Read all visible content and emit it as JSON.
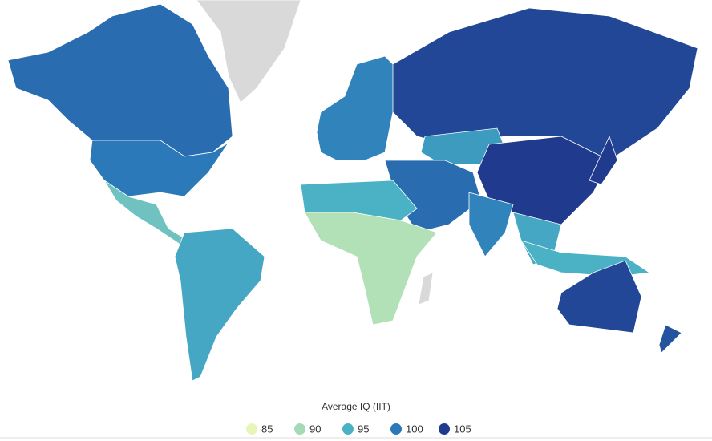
{
  "chart_data": {
    "type": "choropleth",
    "legend_title": "Average IQ (IIT)",
    "legend": [
      {
        "value": 85,
        "color": "#e8f5b9"
      },
      {
        "value": 90,
        "color": "#a4dbb6"
      },
      {
        "value": 95,
        "color": "#4bb2c5"
      },
      {
        "value": 100,
        "color": "#2b79b9"
      },
      {
        "value": 105,
        "color": "#203b8e"
      }
    ],
    "regions": [
      {
        "value": 101
      },
      {
        "value": 100
      },
      {
        "value": 93
      },
      {
        "value": 96
      },
      {
        "value": 99
      },
      {
        "value": 104
      },
      {
        "value": 97
      },
      {
        "value": 106
      },
      {
        "value": 105
      },
      {
        "value": 101
      },
      {
        "value": 99
      },
      {
        "value": 96
      },
      {
        "value": 95
      },
      {
        "value": 95
      },
      {
        "value": 89
      },
      {
        "value": 104
      },
      {
        "value": 103
      }
    ]
  }
}
